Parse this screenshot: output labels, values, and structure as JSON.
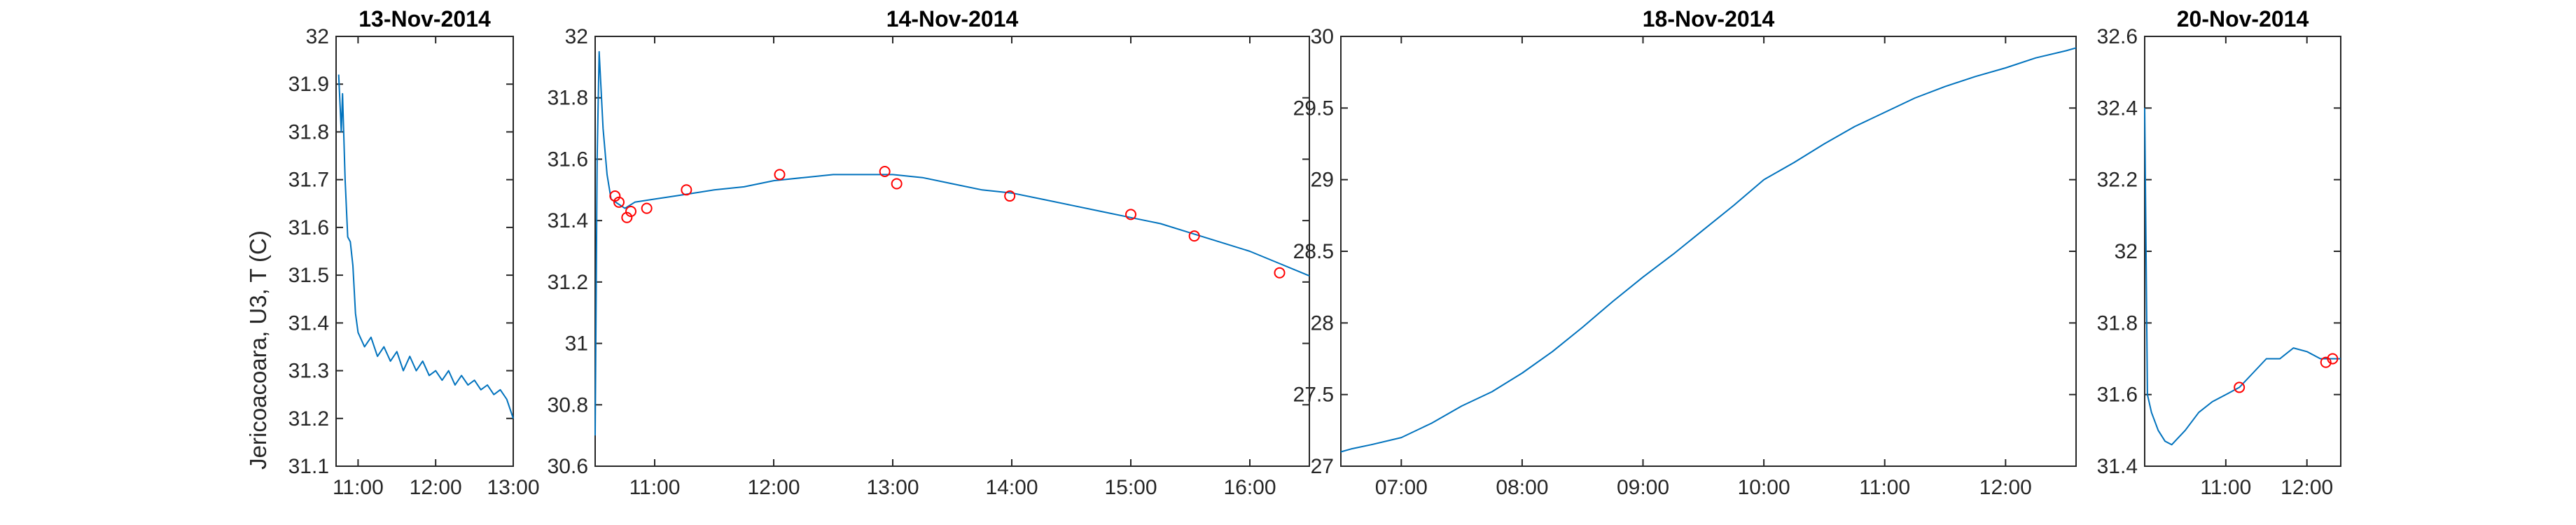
{
  "figure": {
    "ylabel": "Jericoacoara, U3, T (C)"
  },
  "chart_data": [
    {
      "type": "line",
      "title": "13-Nov-2014",
      "ylim": [
        31.1,
        32
      ],
      "xlim": [
        "10:43",
        "13:00"
      ],
      "yticks": [
        "31.1",
        "31.2",
        "31.3",
        "31.4",
        "31.5",
        "31.6",
        "31.7",
        "31.8",
        "31.9",
        "32"
      ],
      "xticks": [
        "11:00",
        "12:00",
        "13:00"
      ],
      "series": [
        {
          "color": "#0072BD",
          "points": [
            [
              "10:45",
              31.92
            ],
            [
              "10:47",
              31.8
            ],
            [
              "10:48",
              31.88
            ],
            [
              "10:50",
              31.7
            ],
            [
              "10:52",
              31.58
            ],
            [
              "10:54",
              31.57
            ],
            [
              "10:56",
              31.52
            ],
            [
              "10:58",
              31.42
            ],
            [
              "11:00",
              31.38
            ],
            [
              "11:05",
              31.35
            ],
            [
              "11:10",
              31.37
            ],
            [
              "11:15",
              31.33
            ],
            [
              "11:20",
              31.35
            ],
            [
              "11:25",
              31.32
            ],
            [
              "11:30",
              31.34
            ],
            [
              "11:35",
              31.3
            ],
            [
              "11:40",
              31.33
            ],
            [
              "11:45",
              31.3
            ],
            [
              "11:50",
              31.32
            ],
            [
              "11:55",
              31.29
            ],
            [
              "12:00",
              31.3
            ],
            [
              "12:05",
              31.28
            ],
            [
              "12:10",
              31.3
            ],
            [
              "12:15",
              31.27
            ],
            [
              "12:20",
              31.29
            ],
            [
              "12:25",
              31.27
            ],
            [
              "12:30",
              31.28
            ],
            [
              "12:35",
              31.26
            ],
            [
              "12:40",
              31.27
            ],
            [
              "12:45",
              31.25
            ],
            [
              "12:50",
              31.26
            ],
            [
              "12:55",
              31.24
            ],
            [
              "13:00",
              31.2
            ]
          ],
          "markers": []
        }
      ]
    },
    {
      "type": "line",
      "title": "14-Nov-2014",
      "ylim": [
        30.6,
        32
      ],
      "xlim": [
        "10:30",
        "16:30"
      ],
      "yticks": [
        "30.6",
        "30.8",
        "31",
        "31.2",
        "31.4",
        "31.6",
        "31.8",
        "32"
      ],
      "xticks": [
        "11:00",
        "12:00",
        "13:00",
        "14:00",
        "15:00",
        "16:00"
      ],
      "series": [
        {
          "color": "#0072BD",
          "points": [
            [
              "10:30",
              30.7
            ],
            [
              "10:31",
              31.6
            ],
            [
              "10:32",
              31.95
            ],
            [
              "10:34",
              31.7
            ],
            [
              "10:36",
              31.55
            ],
            [
              "10:38",
              31.47
            ],
            [
              "10:45",
              31.44
            ],
            [
              "10:50",
              31.46
            ],
            [
              "11:00",
              31.47
            ],
            [
              "11:10",
              31.48
            ],
            [
              "11:20",
              31.49
            ],
            [
              "11:30",
              31.5
            ],
            [
              "11:45",
              31.51
            ],
            [
              "12:00",
              31.53
            ],
            [
              "12:15",
              31.54
            ],
            [
              "12:30",
              31.55
            ],
            [
              "12:45",
              31.55
            ],
            [
              "13:00",
              31.55
            ],
            [
              "13:15",
              31.54
            ],
            [
              "13:30",
              31.52
            ],
            [
              "13:45",
              31.5
            ],
            [
              "14:00",
              31.49
            ],
            [
              "14:15",
              31.47
            ],
            [
              "14:30",
              31.45
            ],
            [
              "14:45",
              31.43
            ],
            [
              "15:00",
              31.41
            ],
            [
              "15:15",
              31.39
            ],
            [
              "15:30",
              31.36
            ],
            [
              "15:45",
              31.33
            ],
            [
              "16:00",
              31.3
            ],
            [
              "16:15",
              31.26
            ],
            [
              "16:30",
              31.22
            ]
          ],
          "markers": [
            [
              "10:40",
              31.48
            ],
            [
              "10:42",
              31.46
            ],
            [
              "10:46",
              31.41
            ],
            [
              "10:48",
              31.43
            ],
            [
              "10:56",
              31.44
            ],
            [
              "11:16",
              31.5
            ],
            [
              "12:03",
              31.55
            ],
            [
              "12:56",
              31.56
            ],
            [
              "13:02",
              31.52
            ],
            [
              "13:59",
              31.48
            ],
            [
              "15:00",
              31.42
            ],
            [
              "15:32",
              31.35
            ],
            [
              "16:15",
              31.23
            ]
          ]
        }
      ]
    },
    {
      "type": "line",
      "title": "18-Nov-2014",
      "ylim": [
        27,
        30
      ],
      "xlim": [
        "06:30",
        "12:35"
      ],
      "yticks": [
        "27",
        "27.5",
        "28",
        "28.5",
        "29",
        "29.5",
        "30"
      ],
      "xticks": [
        "07:00",
        "08:00",
        "09:00",
        "10:00",
        "11:00",
        "12:00"
      ],
      "series": [
        {
          "color": "#0072BD",
          "points": [
            [
              "06:30",
              27.1
            ],
            [
              "06:35",
              27.12
            ],
            [
              "06:45",
              27.15
            ],
            [
              "07:00",
              27.2
            ],
            [
              "07:15",
              27.3
            ],
            [
              "07:30",
              27.42
            ],
            [
              "07:45",
              27.52
            ],
            [
              "08:00",
              27.65
            ],
            [
              "08:15",
              27.8
            ],
            [
              "08:30",
              27.97
            ],
            [
              "08:45",
              28.15
            ],
            [
              "09:00",
              28.32
            ],
            [
              "09:15",
              28.48
            ],
            [
              "09:30",
              28.65
            ],
            [
              "09:45",
              28.82
            ],
            [
              "10:00",
              29
            ],
            [
              "10:15",
              29.12
            ],
            [
              "10:30",
              29.25
            ],
            [
              "10:45",
              29.37
            ],
            [
              "11:00",
              29.47
            ],
            [
              "11:15",
              29.57
            ],
            [
              "11:30",
              29.65
            ],
            [
              "11:45",
              29.72
            ],
            [
              "12:00",
              29.78
            ],
            [
              "12:15",
              29.85
            ],
            [
              "12:30",
              29.9
            ],
            [
              "12:35",
              29.92
            ]
          ],
          "markers": []
        }
      ]
    },
    {
      "type": "line",
      "title": "20-Nov-2014",
      "ylim": [
        31.4,
        32.6
      ],
      "xlim": [
        "10:00",
        "12:25"
      ],
      "yticks": [
        "31.4",
        "31.6",
        "31.8",
        "32",
        "32.2",
        "32.4",
        "32.6"
      ],
      "xticks": [
        "11:00",
        "12:00"
      ],
      "series": [
        {
          "color": "#0072BD",
          "points": [
            [
              "10:00",
              32.4
            ],
            [
              "10:02",
              31.6
            ],
            [
              "10:05",
              31.55
            ],
            [
              "10:10",
              31.5
            ],
            [
              "10:15",
              31.47
            ],
            [
              "10:20",
              31.46
            ],
            [
              "10:30",
              31.5
            ],
            [
              "10:40",
              31.55
            ],
            [
              "10:50",
              31.58
            ],
            [
              "11:00",
              31.6
            ],
            [
              "11:10",
              31.62
            ],
            [
              "11:20",
              31.66
            ],
            [
              "11:30",
              31.7
            ],
            [
              "11:40",
              31.7
            ],
            [
              "11:50",
              31.73
            ],
            [
              "12:00",
              31.72
            ],
            [
              "12:10",
              31.7
            ],
            [
              "12:20",
              31.7
            ],
            [
              "12:25",
              31.7
            ]
          ],
          "markers": [
            [
              "11:10",
              31.62
            ],
            [
              "12:14",
              31.69
            ],
            [
              "12:19",
              31.7
            ]
          ]
        }
      ]
    }
  ]
}
